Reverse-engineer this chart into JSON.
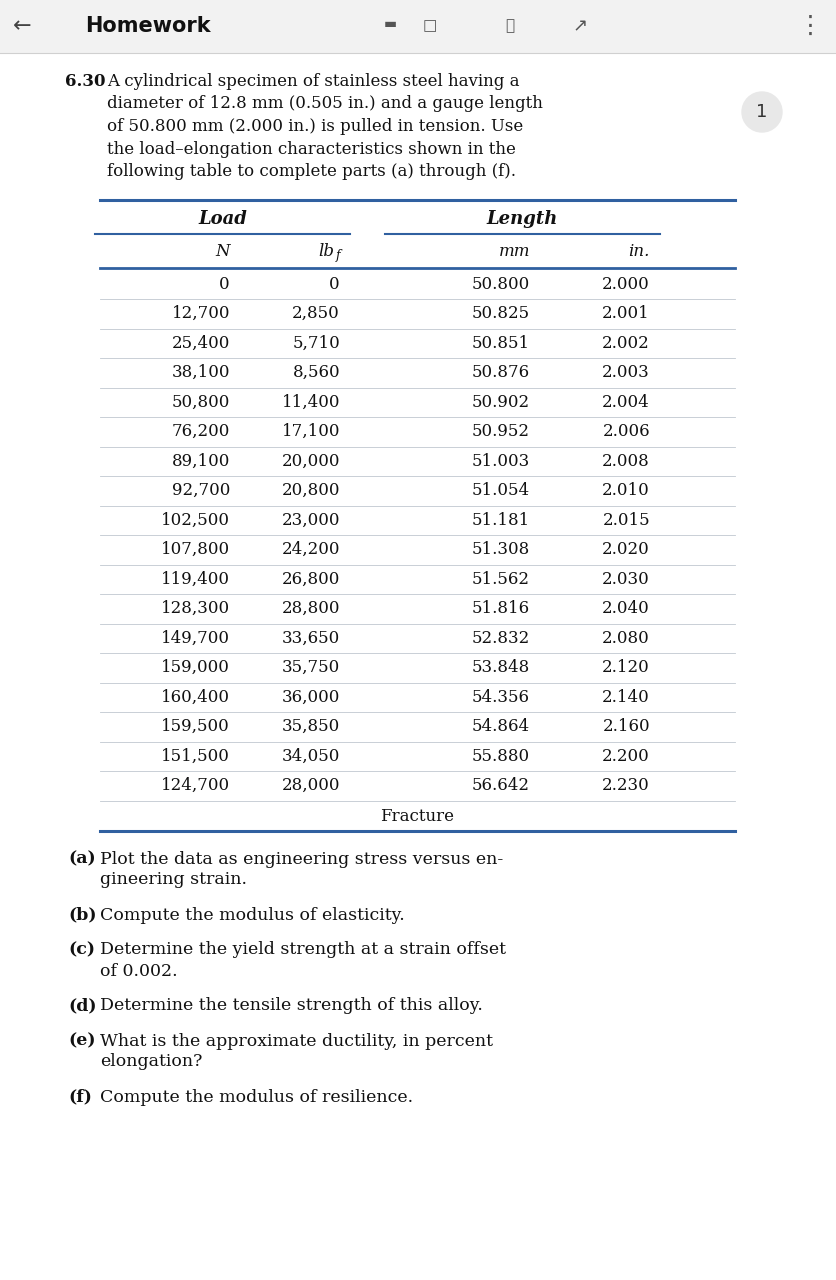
{
  "title": "Homework",
  "problem_number": "6.30",
  "intro_line1": "A cylindrical specimen of stainless steel having a",
  "intro_line2": "diameter of 12.8 mm (0.505 in.) and a gauge length",
  "intro_line3": "of 50.800 mm (2.000 in.) is pulled in tension. Use",
  "intro_line4": "the load–elongation characteristics shown in the",
  "intro_line5": "following table to complete parts (a) through (f).",
  "col_header1": "Load",
  "col_header2": "Length",
  "col_sub1": "N",
  "col_sub2": "lb",
  "col_sub2_sub": "f",
  "col_sub3": "mm",
  "col_sub4": "in.",
  "table_data": [
    [
      "0",
      "0",
      "50.800",
      "2.000"
    ],
    [
      "12,700",
      "2,850",
      "50.825",
      "2.001"
    ],
    [
      "25,400",
      "5,710",
      "50.851",
      "2.002"
    ],
    [
      "38,100",
      "8,560",
      "50.876",
      "2.003"
    ],
    [
      "50,800",
      "11,400",
      "50.902",
      "2.004"
    ],
    [
      "76,200",
      "17,100",
      "50.952",
      "2.006"
    ],
    [
      "89,100",
      "20,000",
      "51.003",
      "2.008"
    ],
    [
      "92,700",
      "20,800",
      "51.054",
      "2.010"
    ],
    [
      "102,500",
      "23,000",
      "51.181",
      "2.015"
    ],
    [
      "107,800",
      "24,200",
      "51.308",
      "2.020"
    ],
    [
      "119,400",
      "26,800",
      "51.562",
      "2.030"
    ],
    [
      "128,300",
      "28,800",
      "51.816",
      "2.040"
    ],
    [
      "149,700",
      "33,650",
      "52.832",
      "2.080"
    ],
    [
      "159,000",
      "35,750",
      "53.848",
      "2.120"
    ],
    [
      "160,400",
      "36,000",
      "54.356",
      "2.140"
    ],
    [
      "159,500",
      "35,850",
      "54.864",
      "2.160"
    ],
    [
      "151,500",
      "34,050",
      "55.880",
      "2.200"
    ],
    [
      "124,700",
      "28,000",
      "56.642",
      "2.230"
    ]
  ],
  "fracture": "Fracture",
  "part_a_bold": "(a)",
  "part_a_text": " Plot the data as engineering stress versus en-",
  "part_a_cont": "gineering strain.",
  "part_b_bold": "(b)",
  "part_b_text": "  Compute the modulus of elasticity.",
  "part_c_bold": "(c)",
  "part_c_text": "  Determine the yield strength at a strain offset",
  "part_c_cont": "of 0.002.",
  "part_d_bold": "(d)",
  "part_d_text": "  Determine the tensile strength of this alloy.",
  "part_e_bold": "(e)",
  "part_e_text": "  What is the approximate ductility, in percent",
  "part_e_cont": "elongation?",
  "part_f_bold": "(f)",
  "part_f_text": "  Compute the modulus of resilience.",
  "page_num": "1",
  "bg_color": "#ffffff",
  "nav_bg": "#f2f2f2",
  "line_color": "#3060a0",
  "sep_color": "#c0c8d0",
  "text_color": "#111111"
}
